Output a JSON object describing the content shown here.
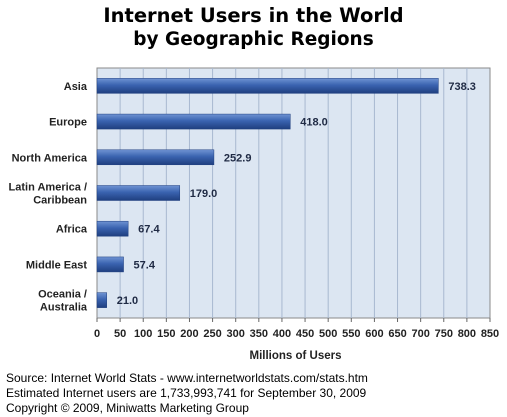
{
  "chart_data": {
    "type": "bar",
    "orientation": "horizontal",
    "title": "Internet Users in the World",
    "subtitle": "by Geographic Regions",
    "categories": [
      "Asia",
      "Europe",
      "North America",
      "Latin America / Caribbean",
      "Africa",
      "Middle East",
      "Oceania / Australia"
    ],
    "category_lines": [
      [
        "Asia"
      ],
      [
        "Europe"
      ],
      [
        "North America"
      ],
      [
        "Latin America /",
        "Caribbean"
      ],
      [
        "Africa"
      ],
      [
        "Middle East"
      ],
      [
        "Oceania  /",
        "Australia"
      ]
    ],
    "values": [
      738.3,
      418.0,
      252.9,
      179.0,
      67.4,
      57.4,
      21.0
    ],
    "value_labels": [
      "738.3",
      "418.0",
      "252.9",
      "179.0",
      "67.4",
      "57.4",
      "21.0"
    ],
    "xlabel": "Millions of Users",
    "ylabel": "",
    "xlim": [
      0,
      850
    ],
    "xticks": [
      0,
      50,
      100,
      150,
      200,
      250,
      300,
      350,
      400,
      450,
      500,
      550,
      600,
      650,
      700,
      750,
      800,
      850
    ],
    "grid": true,
    "colors": {
      "plot_bg": "#dce6f2",
      "bar": "#3a63b0",
      "bar_dark": "#1f3f7f",
      "grid": "#a8b8d0",
      "label": "#1f2a44"
    }
  },
  "footer": {
    "source": "Source: Internet World Stats - www.internetworldstats.com/stats.htm",
    "estimate": "Estimated Internet users are 1,733,993,741 for September 30, 2009",
    "copyright": "Copyright © 2009, Miniwatts Marketing Group"
  }
}
